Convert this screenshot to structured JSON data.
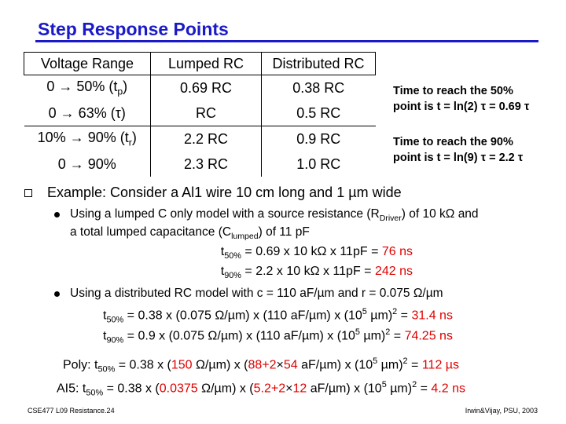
{
  "title": "Step Response Points",
  "table": {
    "header": [
      "Voltage Range",
      "Lumped RC",
      "Distributed RC"
    ],
    "rows": [
      [
        [
          "0 → 50% (t",
          {
            "sub": "p"
          },
          ")"
        ],
        "0.69 RC",
        "0.38 RC"
      ],
      [
        "0 → 63% (τ)",
        "RC",
        "0.5 RC"
      ],
      [
        [
          "10% → 90% (t",
          {
            "sub": "r"
          },
          ")"
        ],
        "2.2 RC",
        "0.9 RC"
      ],
      [
        "0 → 90%",
        "2.3 RC",
        "1.0 RC"
      ]
    ]
  },
  "notes": [
    [
      "Time to reach the 50%",
      "point is t = ln(2) τ = 0.69 τ"
    ],
    [
      "Time to reach the 90%",
      "point is t = ln(9) τ = 2.2 τ"
    ]
  ],
  "bullet": "Example:  Consider a Al1 wire 10 cm long and 1 µm wide",
  "items": [
    {
      "lines": [
        [
          "Using a lumped C only model with a source resistance (R",
          {
            "sub": "Driver"
          },
          ") of 10 kΩ and"
        ],
        [
          "a total lumped capacitance (C",
          {
            "sub": "lumped"
          },
          ") of 11 pF"
        ]
      ],
      "equations": [
        [
          "t",
          {
            "sub": "50%"
          },
          " = 0.69 x 10 kΩ x 11pF = ",
          {
            "red": "76 ns"
          }
        ],
        [
          "t",
          {
            "sub": "90%"
          },
          " = 2.2 x 10 kΩ  x 11pF = ",
          {
            "red": "242 ns"
          }
        ]
      ]
    },
    {
      "lines": [
        [
          "Using a distributed RC model with c = 110 aF/µm and r = 0.075 Ω/µm"
        ]
      ],
      "equations": [
        [
          "t",
          {
            "sub": "50%"
          },
          " = 0.38 x (0.075 Ω/µm) x (110 aF/µm) x (10",
          {
            "sup": "5"
          },
          " µm)",
          {
            "sup": "2"
          },
          " = ",
          {
            "red": "31.4 ns"
          }
        ],
        [
          "t",
          {
            "sub": "90%"
          },
          " = 0.9 x (0.075 Ω/µm) x (110 aF/µm) x (10",
          {
            "sup": "5"
          },
          " µm)",
          {
            "sup": "2"
          },
          " = ",
          {
            "red": "74.25 ns"
          }
        ]
      ]
    }
  ],
  "examples": [
    [
      "Poly: t",
      {
        "sub": "50%"
      },
      " = 0.38 x (",
      {
        "red": "150"
      },
      " Ω/µm) x (",
      {
        "red": "88+2"
      },
      "×",
      {
        "red": "54"
      },
      " aF/µm) x (10",
      {
        "sup": "5"
      },
      " µm)",
      {
        "sup": "2"
      },
      " = ",
      {
        "red": "112 µs"
      }
    ],
    [
      "AI5: t",
      {
        "sub": "50%"
      },
      " = 0.38 x (",
      {
        "red": "0.0375"
      },
      " Ω/µm) x (",
      {
        "red": "5.2+2"
      },
      "×",
      {
        "red": "12"
      },
      " aF/µm) x (10",
      {
        "sup": "5"
      },
      " µm)",
      {
        "sup": "2"
      },
      " = ",
      {
        "red": "4.2 ns"
      }
    ]
  ],
  "footer": {
    "left": "CSE477  L09 Resistance.24",
    "right": "Irwin&Vijay, PSU, 2003"
  }
}
